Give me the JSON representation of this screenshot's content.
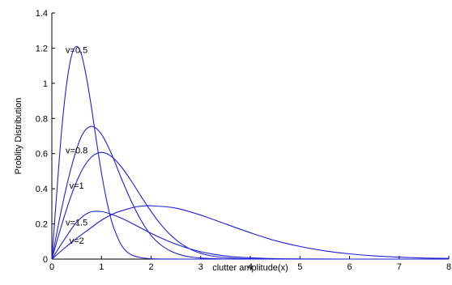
{
  "chart_data": {
    "type": "line",
    "title": "",
    "xlabel": "clutter amplitude(x)",
    "ylabel": "Problity Distribution",
    "xlim": [
      0,
      8
    ],
    "ylim": [
      0,
      1.4
    ],
    "xticks": [
      "0",
      "1",
      "2",
      "3",
      "4",
      "5",
      "6",
      "7",
      "8"
    ],
    "yticks": [
      "0",
      "0.2",
      "0.4",
      "0.6",
      "0.8",
      "1",
      "1.2",
      "1.4"
    ],
    "grid": false,
    "line_color": "#1f1fd6",
    "series": [
      {
        "name": "v=0.5",
        "x": [
          0,
          0.1,
          0.2,
          0.3,
          0.4,
          0.5,
          0.6,
          0.7,
          0.8,
          0.9,
          1.0,
          1.1,
          1.2,
          1.3,
          1.4,
          1.5,
          1.6,
          1.8,
          2.0,
          2.2,
          2.5,
          3.0,
          8.0
        ],
        "y": [
          0,
          0.38,
          0.74,
          1.0,
          1.16,
          1.21,
          1.16,
          1.03,
          0.86,
          0.67,
          0.49,
          0.34,
          0.22,
          0.14,
          0.08,
          0.045,
          0.025,
          0.008,
          0.002,
          0.0005,
          0.0001,
          0,
          0
        ]
      },
      {
        "name": "v=0.8",
        "x": [
          0,
          0.2,
          0.4,
          0.6,
          0.8,
          1.0,
          1.2,
          1.4,
          1.6,
          1.8,
          2.0,
          2.2,
          2.4,
          2.6,
          2.8,
          3.0,
          3.4,
          4.0,
          8.0
        ],
        "y": [
          0,
          0.29,
          0.53,
          0.7,
          0.755,
          0.71,
          0.6,
          0.46,
          0.33,
          0.22,
          0.135,
          0.08,
          0.045,
          0.024,
          0.012,
          0.006,
          0.0013,
          0.0001,
          0
        ]
      },
      {
        "name": "v=1",
        "x": [
          0,
          0.2,
          0.4,
          0.6,
          0.8,
          1.0,
          1.2,
          1.4,
          1.6,
          1.8,
          2.0,
          2.2,
          2.4,
          2.6,
          2.8,
          3.0,
          3.2,
          3.5,
          4.0,
          5.0,
          8.0
        ],
        "y": [
          0,
          0.196,
          0.369,
          0.502,
          0.581,
          0.607,
          0.584,
          0.525,
          0.445,
          0.356,
          0.271,
          0.196,
          0.135,
          0.089,
          0.055,
          0.033,
          0.019,
          0.008,
          0.0013,
          0,
          0
        ]
      },
      {
        "name": "v=1.5",
        "x": [
          0,
          0.25,
          0.5,
          0.75,
          1.0,
          1.25,
          1.5,
          1.75,
          2.0,
          2.25,
          2.5,
          2.75,
          3.0,
          3.25,
          3.5,
          3.75,
          4.0,
          4.5,
          5.0,
          6.0,
          8.0
        ],
        "y": [
          0,
          0.11,
          0.21,
          0.265,
          0.27,
          0.25,
          0.22,
          0.183,
          0.147,
          0.114,
          0.085,
          0.061,
          0.042,
          0.028,
          0.018,
          0.011,
          0.007,
          0.0025,
          0.0008,
          0,
          0
        ]
      },
      {
        "name": "v=2",
        "x": [
          0,
          0.25,
          0.5,
          0.75,
          1.0,
          1.25,
          1.5,
          1.75,
          2.0,
          2.5,
          3.0,
          3.5,
          4.0,
          4.5,
          5.0,
          5.5,
          6.0,
          6.5,
          7.0,
          7.5,
          8.0
        ],
        "y": [
          0,
          0.061,
          0.118,
          0.17,
          0.221,
          0.259,
          0.283,
          0.3,
          0.303,
          0.29,
          0.25,
          0.2,
          0.15,
          0.105,
          0.072,
          0.047,
          0.03,
          0.018,
          0.011,
          0.006,
          0.004
        ]
      }
    ],
    "annotations": [
      {
        "text": "v=0.5",
        "x": 0.5,
        "y": 1.19
      },
      {
        "text": "v=0.8",
        "x": 0.5,
        "y": 0.62
      },
      {
        "text": "v=1",
        "x": 0.5,
        "y": 0.42
      },
      {
        "text": "v=1.5",
        "x": 0.5,
        "y": 0.21
      },
      {
        "text": "v=2",
        "x": 0.5,
        "y": 0.105
      }
    ]
  }
}
